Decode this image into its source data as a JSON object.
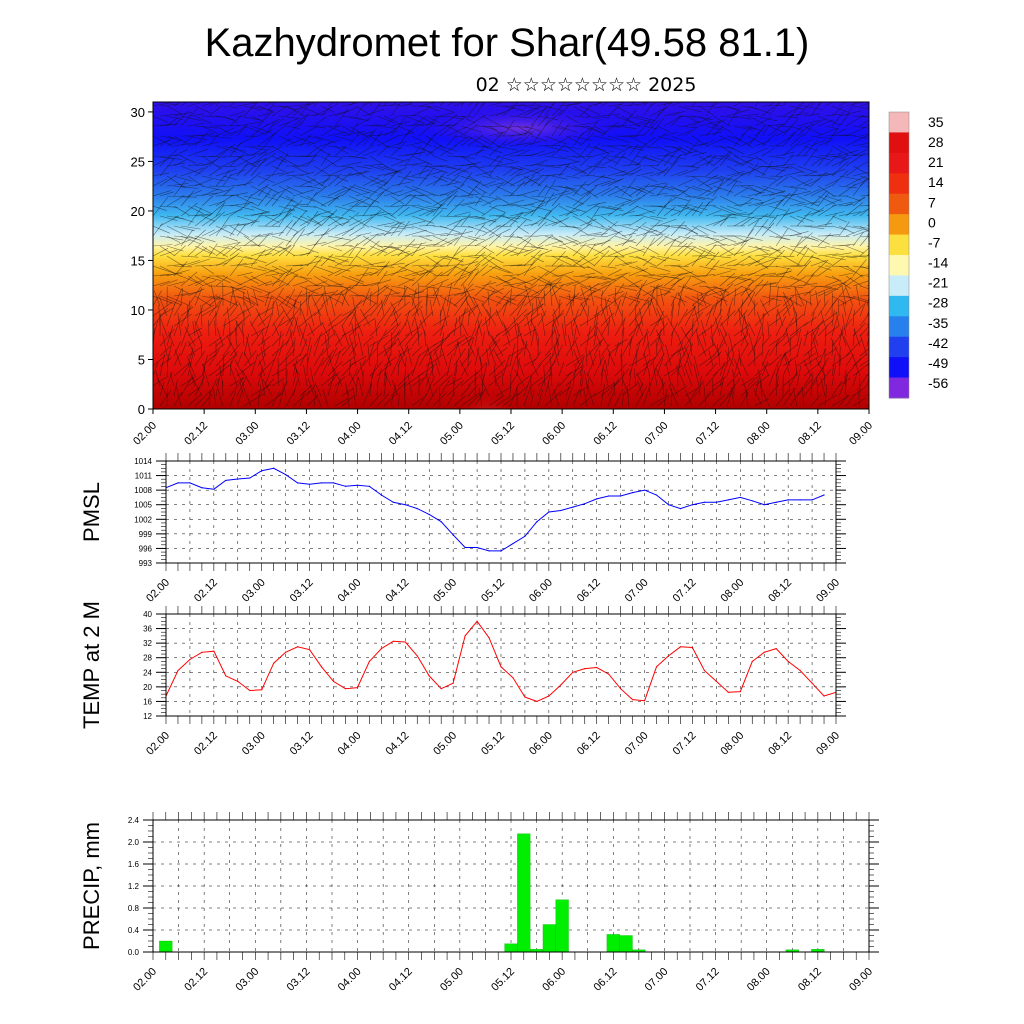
{
  "title": "Kazhydromet for Shar(49.58 81.1)",
  "subtitle": "02 ☆☆☆☆☆☆☆☆ 2025",
  "time_labels": [
    "02.00",
    "02.12",
    "03.00",
    "03.12",
    "04.00",
    "04.12",
    "05.00",
    "05.12",
    "06.00",
    "06.12",
    "07.00",
    "07.12",
    "08.00",
    "08.12",
    "09.00"
  ],
  "colors": {
    "pmsl_line": "#0000ff",
    "temp_line": "#ff0000",
    "precip_bar": "#00ee00",
    "grid": "#000000"
  },
  "chart_data": [
    {
      "type": "heatmap",
      "name": "cross-section",
      "y_ticks": [
        0,
        5,
        10,
        15,
        20,
        25,
        30
      ],
      "ylim": [
        0,
        31
      ],
      "colorbar": {
        "labels": [
          "35",
          "28",
          "21",
          "14",
          "7",
          "0",
          "-7",
          "-14",
          "-21",
          "-28",
          "-35",
          "-42",
          "-49",
          "-56"
        ],
        "colors": [
          "#f4b8b8",
          "#e01010",
          "#e81818",
          "#ee3010",
          "#f05a10",
          "#f59a10",
          "#fce040",
          "#fff8b0",
          "#c8ecf8",
          "#30b8f0",
          "#2880ec",
          "#2040f0",
          "#1010f8",
          "#8028e0"
        ]
      }
    },
    {
      "type": "line",
      "ylabel": "PMSL",
      "y_ticks": [
        993,
        996,
        999,
        1002,
        1005,
        1008,
        1011,
        1014
      ],
      "ylim": [
        993,
        1014
      ],
      "x_start": "02.00",
      "step_hours": 3,
      "values": [
        1008.5,
        1009.5,
        1009.5,
        1008.5,
        1008.2,
        1010,
        1010.3,
        1010.5,
        1012,
        1012.5,
        1011.2,
        1009.5,
        1009.2,
        1009.5,
        1009.5,
        1008.8,
        1009,
        1008.8,
        1007,
        1005.5,
        1005,
        1004.2,
        1003,
        1001.5,
        998.8,
        996.2,
        996.2,
        995.5,
        995.5,
        997,
        998.5,
        1001.5,
        1003.5,
        1003.8,
        1004.5,
        1005.2,
        1006.2,
        1006.8,
        1006.8,
        1007.5,
        1008,
        1007,
        1005,
        1004.2,
        1005,
        1005.5,
        1005.5,
        1006,
        1006.5,
        1005.8,
        1005,
        1005.5,
        1006,
        1006,
        1006,
        1007
      ]
    },
    {
      "type": "line",
      "ylabel": "TEMP at 2 M",
      "y_ticks": [
        12,
        16,
        20,
        24,
        28,
        32,
        36,
        40
      ],
      "ylim": [
        12,
        40
      ],
      "x_start": "02.00",
      "step_hours": 3,
      "values": [
        17.5,
        24.5,
        27.5,
        29.5,
        29.8,
        23,
        21.5,
        19,
        19.2,
        26.5,
        29.5,
        31,
        30.2,
        25.5,
        21.5,
        19.5,
        19.8,
        27,
        30.5,
        32.5,
        32.3,
        28.5,
        23,
        19.5,
        21,
        34,
        38,
        33.5,
        25.5,
        22.5,
        17.2,
        16,
        17.5,
        20.5,
        24,
        25,
        25.3,
        23.5,
        19.5,
        16.5,
        16.2,
        25.5,
        28.5,
        31,
        30.8,
        24.5,
        21.5,
        18.5,
        18.7,
        27,
        29.5,
        30.5,
        27,
        24.5,
        21,
        17.5,
        18.5
      ]
    },
    {
      "type": "bar",
      "ylabel": "PRECIP, mm",
      "y_ticks": [
        "0.0",
        "0.4",
        "0.8",
        "1.2",
        "1.6",
        "2.0",
        "2.4"
      ],
      "ylim": [
        0,
        2.4
      ],
      "x_start": "02.00",
      "step_hours": 3,
      "values": [
        0,
        0.2,
        0,
        0,
        0,
        0,
        0,
        0,
        0,
        0,
        0,
        0,
        0,
        0,
        0,
        0,
        0,
        0,
        0,
        0,
        0,
        0,
        0,
        0,
        0,
        0,
        0,
        0,
        0.15,
        2.15,
        0.05,
        0.5,
        0.95,
        0,
        0,
        0,
        0.32,
        0.3,
        0.04,
        0,
        0,
        0,
        0,
        0,
        0,
        0,
        0,
        0,
        0,
        0,
        0.04,
        0,
        0.05,
        0,
        0,
        0
      ]
    }
  ]
}
